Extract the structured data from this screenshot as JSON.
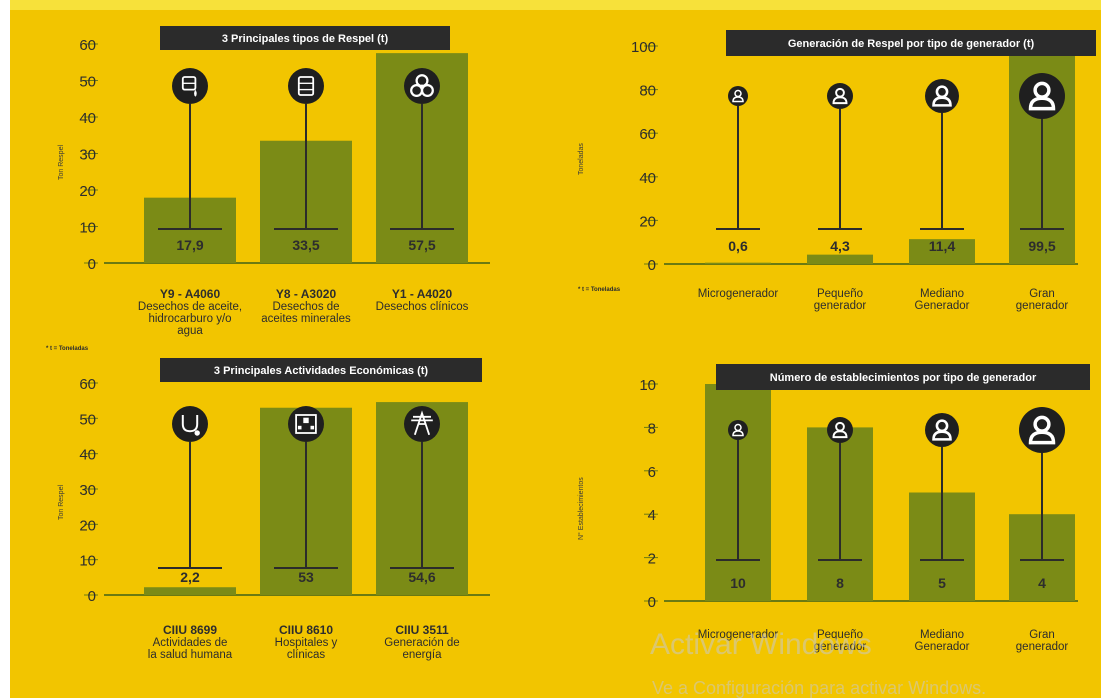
{
  "colors": {
    "background": "#f2c500",
    "bar": "#7b8b16",
    "axis": "#6b7a12",
    "title_bg": "#2b2b2b",
    "title_text": "#ffffff",
    "icon_bg": "#1f1f1f",
    "text": "#2d2d2d"
  },
  "footnote": "* t = Toneladas",
  "watermark": {
    "line1": "Activar Windows",
    "line2": "Ve a Configuración para activar Windows."
  },
  "chart_data": [
    {
      "type": "bar",
      "title": "3 Principales tipos de Respel (t)",
      "ylabel": "Ton Respel",
      "ylim": [
        0,
        60
      ],
      "yticks": [
        0,
        10,
        20,
        30,
        40,
        50,
        60
      ],
      "categories": [
        {
          "code": "Y9 - A4060",
          "desc": [
            "Desechos de aceite,",
            "hidrocarburo y/o",
            "agua"
          ]
        },
        {
          "code": "Y8 - A3020",
          "desc": [
            "Desechos de",
            "aceites minerales"
          ]
        },
        {
          "code": "Y1 - A4020",
          "desc": [
            "Desechos clínicos"
          ]
        }
      ],
      "values": [
        17.9,
        33.5,
        57.5
      ],
      "value_labels": [
        "17,9",
        "33,5",
        "57,5"
      ],
      "icons": [
        "oil-drum-icon",
        "chemical-barrel-icon",
        "biohazard-icon"
      ]
    },
    {
      "type": "bar",
      "title": "Generación de Respel por tipo de generador (t)",
      "ylabel": "Toneladas",
      "ylim": [
        0,
        100
      ],
      "yticks": [
        0,
        20,
        40,
        60,
        80,
        100
      ],
      "categories": [
        {
          "code": "",
          "desc": [
            "Microgenerador"
          ]
        },
        {
          "code": "",
          "desc": [
            "Pequeño",
            "generador"
          ]
        },
        {
          "code": "",
          "desc": [
            "Mediano",
            "Generador"
          ]
        },
        {
          "code": "",
          "desc": [
            "Gran",
            "generador"
          ]
        }
      ],
      "values": [
        0.6,
        4.3,
        11.4,
        99.5
      ],
      "value_labels": [
        "0,6",
        "4,3",
        "11,4",
        "99,5"
      ],
      "icons": [
        "person-icon",
        "person-icon",
        "person-icon",
        "person-icon"
      ]
    },
    {
      "type": "bar",
      "title": "3 Principales Actividades Económicas (t)",
      "ylabel": "Ton Respel",
      "ylim": [
        0,
        60
      ],
      "yticks": [
        0,
        10,
        20,
        30,
        40,
        50,
        60
      ],
      "categories": [
        {
          "code": "CIIU 8699",
          "desc": [
            "Actividades de",
            "la salud humana"
          ]
        },
        {
          "code": "CIIU 8610",
          "desc": [
            "Hospitales y",
            "clínicas"
          ]
        },
        {
          "code": "CIIU 3511",
          "desc": [
            "Generación de",
            "energía"
          ]
        }
      ],
      "values": [
        2.2,
        53,
        54.6
      ],
      "value_labels": [
        "2,2",
        "53",
        "54,6"
      ],
      "icons": [
        "stethoscope-icon",
        "hospital-icon",
        "power-tower-icon"
      ]
    },
    {
      "type": "bar",
      "title": "Número de establecimientos por tipo de generador",
      "ylabel": "N° Establecimientos",
      "ylim": [
        0,
        10
      ],
      "yticks": [
        0,
        2,
        4,
        6,
        8,
        10
      ],
      "categories": [
        {
          "code": "",
          "desc": [
            "Microgenerador"
          ]
        },
        {
          "code": "",
          "desc": [
            "Pequeño",
            "generador"
          ]
        },
        {
          "code": "",
          "desc": [
            "Mediano",
            "Generador"
          ]
        },
        {
          "code": "",
          "desc": [
            "Gran",
            "generador"
          ]
        }
      ],
      "values": [
        10,
        8,
        5,
        4
      ],
      "value_labels": [
        "10",
        "8",
        "5",
        "4"
      ],
      "icons": [
        "person-icon",
        "person-icon",
        "person-icon",
        "person-icon"
      ]
    }
  ]
}
